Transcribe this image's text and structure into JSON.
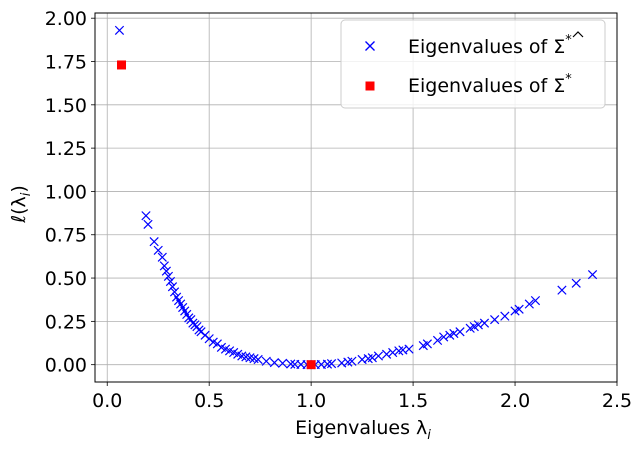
{
  "chart_data": {
    "type": "scatter",
    "xlabel": "Eigenvalues λ",
    "xlabel_sub": "i",
    "ylabel": "ℓ(λ",
    "ylabel_sub": "i",
    "ylabel_close": ")",
    "xlim": [
      -0.06,
      2.5
    ],
    "ylim": [
      -0.1,
      2.03
    ],
    "x_ticks": [
      0.0,
      0.5,
      1.0,
      1.5,
      2.0,
      2.5
    ],
    "x_tick_labels": [
      "0.0",
      "0.5",
      "1.0",
      "1.5",
      "2.0",
      "2.5"
    ],
    "y_ticks": [
      0.0,
      0.25,
      0.5,
      0.75,
      1.0,
      1.25,
      1.5,
      1.75,
      2.0
    ],
    "y_tick_labels": [
      "0.00",
      "0.25",
      "0.50",
      "0.75",
      "1.00",
      "1.25",
      "1.50",
      "1.75",
      "2.00"
    ],
    "grid": true,
    "legend_position": "top-right",
    "series": [
      {
        "name": "Eigenvalues of Σ̂*",
        "legend_prefix": "Eigenvalues of ",
        "legend_symbol": "Σ",
        "legend_sup": "*",
        "marker": "x",
        "color": "#0000ff",
        "x": [
          0.06,
          0.19,
          0.2,
          0.23,
          0.25,
          0.27,
          0.28,
          0.29,
          0.3,
          0.31,
          0.32,
          0.33,
          0.34,
          0.35,
          0.36,
          0.37,
          0.38,
          0.39,
          0.4,
          0.41,
          0.42,
          0.43,
          0.44,
          0.45,
          0.46,
          0.48,
          0.5,
          0.52,
          0.54,
          0.56,
          0.58,
          0.6,
          0.62,
          0.64,
          0.66,
          0.68,
          0.7,
          0.72,
          0.74,
          0.78,
          0.82,
          0.86,
          0.9,
          0.92,
          0.95,
          0.98,
          1.0,
          1.02,
          1.05,
          1.08,
          1.1,
          1.15,
          1.18,
          1.2,
          1.25,
          1.28,
          1.3,
          1.33,
          1.37,
          1.4,
          1.43,
          1.45,
          1.48,
          1.55,
          1.57,
          1.62,
          1.65,
          1.68,
          1.7,
          1.73,
          1.78,
          1.8,
          1.82,
          1.85,
          1.9,
          1.95,
          2.0,
          2.02,
          2.07,
          2.1,
          2.23,
          2.3,
          2.38
        ],
        "y": [
          1.93,
          0.86,
          0.81,
          0.71,
          0.66,
          0.62,
          0.57,
          0.54,
          0.51,
          0.48,
          0.45,
          0.42,
          0.39,
          0.37,
          0.35,
          0.33,
          0.31,
          0.29,
          0.27,
          0.26,
          0.24,
          0.23,
          0.22,
          0.2,
          0.19,
          0.17,
          0.15,
          0.13,
          0.12,
          0.1,
          0.09,
          0.08,
          0.07,
          0.06,
          0.05,
          0.045,
          0.04,
          0.035,
          0.03,
          0.02,
          0.012,
          0.008,
          0.004,
          0.002,
          0.001,
          0.0,
          0.0,
          0.0,
          0.001,
          0.003,
          0.006,
          0.01,
          0.015,
          0.02,
          0.03,
          0.035,
          0.04,
          0.05,
          0.06,
          0.07,
          0.08,
          0.085,
          0.09,
          0.11,
          0.12,
          0.14,
          0.16,
          0.17,
          0.18,
          0.19,
          0.21,
          0.22,
          0.23,
          0.24,
          0.26,
          0.28,
          0.31,
          0.32,
          0.35,
          0.37,
          0.43,
          0.47,
          0.52
        ]
      },
      {
        "name": "Eigenvalues of Σ*",
        "legend_prefix": "Eigenvalues of ",
        "legend_symbol": "Σ",
        "legend_sup": "*",
        "marker": "square",
        "color": "#ff0000",
        "x": [
          0.07,
          1.0
        ],
        "y": [
          1.73,
          0.0
        ]
      }
    ]
  }
}
